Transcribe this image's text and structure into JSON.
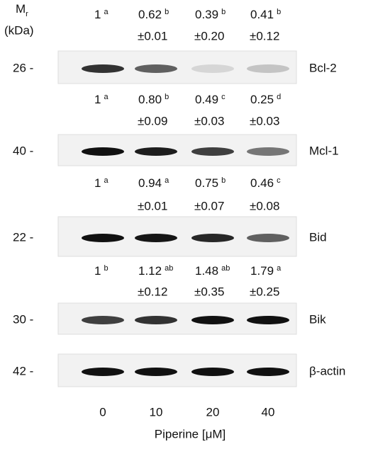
{
  "header": {
    "mr": "M",
    "mr_sub": "r",
    "kda": "(kDa)"
  },
  "panels": [
    {
      "name": "Bcl-2",
      "mw": "26 -",
      "values": [
        {
          "v": "1",
          "sup": "a"
        },
        {
          "v": "0.62",
          "sup": "b",
          "sd": "±0.01"
        },
        {
          "v": "0.39",
          "sup": "b",
          "sd": "±0.20"
        },
        {
          "v": "0.41",
          "sup": "b",
          "sd": "±0.12"
        }
      ]
    },
    {
      "name": "Mcl-1",
      "mw": "40 -",
      "values": [
        {
          "v": "1",
          "sup": "a"
        },
        {
          "v": "0.80",
          "sup": "b",
          "sd": "±0.09"
        },
        {
          "v": "0.49",
          "sup": "c",
          "sd": "±0.03"
        },
        {
          "v": "0.25",
          "sup": "d",
          "sd": "±0.03"
        }
      ]
    },
    {
      "name": "Bid",
      "mw": "22 -",
      "values": [
        {
          "v": "1",
          "sup": "a"
        },
        {
          "v": "0.94",
          "sup": "a",
          "sd": "±0.01"
        },
        {
          "v": "0.75",
          "sup": "b",
          "sd": "±0.07"
        },
        {
          "v": "0.46",
          "sup": "c",
          "sd": "±0.08"
        }
      ]
    },
    {
      "name": "Bik",
      "mw": "30 -",
      "values": [
        {
          "v": "1",
          "sup": "b"
        },
        {
          "v": "1.12",
          "sup": "ab",
          "sd": "±0.12"
        },
        {
          "v": "1.48",
          "sup": "ab",
          "sd": "±0.35"
        },
        {
          "v": "1.79",
          "sup": "a",
          "sd": "±0.25"
        }
      ]
    },
    {
      "name": "β-actin",
      "mw": "42 -"
    }
  ],
  "doses": [
    "0",
    "10",
    "20",
    "40"
  ],
  "xlabel": "Piperine [μM]"
}
